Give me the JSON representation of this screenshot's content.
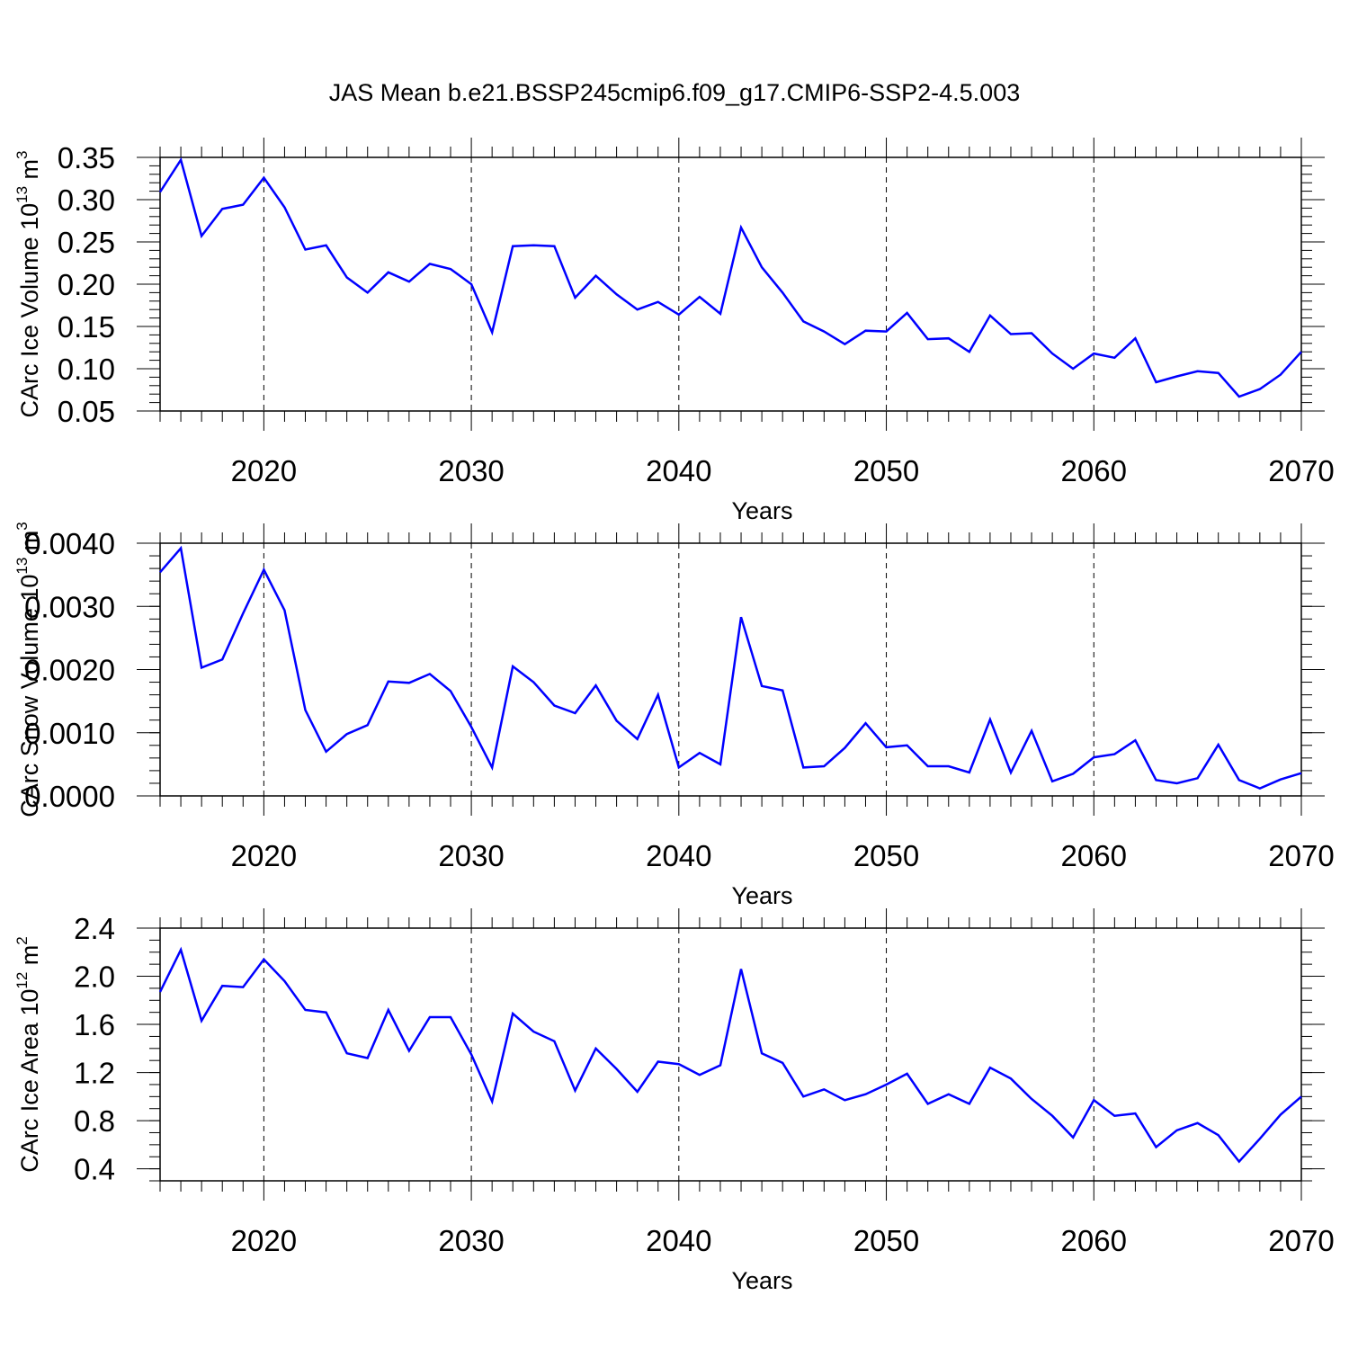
{
  "title": "JAS Mean b.e21.BSSP245cmip6.f09_g17.CMIP6-SSP2-4.5.003",
  "chart_data": [
    {
      "type": "line",
      "xlabel": "Years",
      "ylabel_main": "CArc Ice Volume 10",
      "ylabel_exp": "13",
      "ylabel_unit": " m",
      "ylabel_unit_exp": "3",
      "color": "#0000ff",
      "xlim": [
        2015,
        2070
      ],
      "ylim": [
        0.05,
        0.35
      ],
      "x_ticks": [
        2020,
        2030,
        2040,
        2050,
        2060,
        2070
      ],
      "x_tick_labels": [
        "2020",
        "2030",
        "2040",
        "2050",
        "2060",
        "2070"
      ],
      "y_ticks": [
        0.05,
        0.1,
        0.15,
        0.2,
        0.25,
        0.3,
        0.35
      ],
      "y_tick_labels": [
        "0.05",
        "0.10",
        "0.15",
        "0.20",
        "0.25",
        "0.30",
        "0.35"
      ],
      "y_minor_step": 0.01,
      "x": [
        2015,
        2016,
        2017,
        2018,
        2019,
        2020,
        2021,
        2022,
        2023,
        2024,
        2025,
        2026,
        2027,
        2028,
        2029,
        2030,
        2031,
        2032,
        2033,
        2034,
        2035,
        2036,
        2037,
        2038,
        2039,
        2040,
        2041,
        2042,
        2043,
        2044,
        2045,
        2046,
        2047,
        2048,
        2049,
        2050,
        2051,
        2052,
        2053,
        2054,
        2055,
        2056,
        2057,
        2058,
        2059,
        2060,
        2061,
        2062,
        2063,
        2064,
        2065,
        2066,
        2067,
        2068,
        2069,
        2070
      ],
      "values": [
        0.309,
        0.347,
        0.257,
        0.289,
        0.294,
        0.326,
        0.291,
        0.241,
        0.246,
        0.208,
        0.19,
        0.214,
        0.203,
        0.224,
        0.218,
        0.2,
        0.143,
        0.245,
        0.246,
        0.245,
        0.184,
        0.21,
        0.188,
        0.17,
        0.179,
        0.164,
        0.185,
        0.165,
        0.267,
        0.22,
        0.19,
        0.156,
        0.144,
        0.129,
        0.145,
        0.144,
        0.166,
        0.135,
        0.136,
        0.12,
        0.163,
        0.141,
        0.142,
        0.118,
        0.1,
        0.118,
        0.113,
        0.136,
        0.084,
        0.091,
        0.097,
        0.095,
        0.067,
        0.076,
        0.093,
        0.12
      ]
    },
    {
      "type": "line",
      "xlabel": "Years",
      "ylabel_main": "CArc Snow Volume 10",
      "ylabel_exp": "13",
      "ylabel_unit": " m",
      "ylabel_unit_exp": "3",
      "color": "#0000ff",
      "xlim": [
        2015,
        2070
      ],
      "ylim": [
        0.0,
        0.004
      ],
      "x_ticks": [
        2020,
        2030,
        2040,
        2050,
        2060,
        2070
      ],
      "x_tick_labels": [
        "2020",
        "2030",
        "2040",
        "2050",
        "2060",
        "2070"
      ],
      "y_ticks": [
        0.0,
        0.001,
        0.002,
        0.003,
        0.004
      ],
      "y_tick_labels": [
        "0.0000",
        "0.0010",
        "0.0020",
        "0.0030",
        "0.0040"
      ],
      "y_minor_step": 0.0002,
      "x": [
        2015,
        2016,
        2017,
        2018,
        2019,
        2020,
        2021,
        2022,
        2023,
        2024,
        2025,
        2026,
        2027,
        2028,
        2029,
        2030,
        2031,
        2032,
        2033,
        2034,
        2035,
        2036,
        2037,
        2038,
        2039,
        2040,
        2041,
        2042,
        2043,
        2044,
        2045,
        2046,
        2047,
        2048,
        2049,
        2050,
        2051,
        2052,
        2053,
        2054,
        2055,
        2056,
        2057,
        2058,
        2059,
        2060,
        2061,
        2062,
        2063,
        2064,
        2065,
        2066,
        2067,
        2068,
        2069,
        2070
      ],
      "values": [
        0.00354,
        0.00392,
        0.00203,
        0.00216,
        0.00289,
        0.00358,
        0.00294,
        0.00136,
        0.0007,
        0.00098,
        0.00112,
        0.00181,
        0.00179,
        0.00193,
        0.00166,
        0.00109,
        0.00045,
        0.00205,
        0.0018,
        0.00143,
        0.00131,
        0.00175,
        0.00119,
        0.0009,
        0.0016,
        0.00045,
        0.00068,
        0.0005,
        0.00283,
        0.00174,
        0.00167,
        0.00045,
        0.00047,
        0.00076,
        0.00115,
        0.00077,
        0.0008,
        0.00047,
        0.00047,
        0.00037,
        0.00121,
        0.00037,
        0.00103,
        0.00023,
        0.00035,
        0.00061,
        0.00066,
        0.00088,
        0.00025,
        0.0002,
        0.00028,
        0.00081,
        0.00025,
        0.00012,
        0.00026,
        0.00036
      ]
    },
    {
      "type": "line",
      "xlabel": "Years",
      "ylabel_main": "CArc Ice Area 10",
      "ylabel_exp": "12",
      "ylabel_unit": " m",
      "ylabel_unit_exp": "2",
      "color": "#0000ff",
      "xlim": [
        2015,
        2070
      ],
      "ylim": [
        0.3,
        2.4
      ],
      "x_ticks": [
        2020,
        2030,
        2040,
        2050,
        2060,
        2070
      ],
      "x_tick_labels": [
        "2020",
        "2030",
        "2040",
        "2050",
        "2060",
        "2070"
      ],
      "y_ticks": [
        0.4,
        0.8,
        1.2,
        1.6,
        2.0,
        2.4
      ],
      "y_tick_labels": [
        "0.4",
        "0.8",
        "1.2",
        "1.6",
        "2.0",
        "2.4"
      ],
      "y_minor_step": 0.1,
      "x": [
        2015,
        2016,
        2017,
        2018,
        2019,
        2020,
        2021,
        2022,
        2023,
        2024,
        2025,
        2026,
        2027,
        2028,
        2029,
        2030,
        2031,
        2032,
        2033,
        2034,
        2035,
        2036,
        2037,
        2038,
        2039,
        2040,
        2041,
        2042,
        2043,
        2044,
        2045,
        2046,
        2047,
        2048,
        2049,
        2050,
        2051,
        2052,
        2053,
        2054,
        2055,
        2056,
        2057,
        2058,
        2059,
        2060,
        2061,
        2062,
        2063,
        2064,
        2065,
        2066,
        2067,
        2068,
        2069,
        2070
      ],
      "values": [
        1.87,
        2.22,
        1.63,
        1.92,
        1.91,
        2.14,
        1.96,
        1.72,
        1.7,
        1.36,
        1.32,
        1.72,
        1.38,
        1.66,
        1.66,
        1.35,
        0.96,
        1.69,
        1.54,
        1.46,
        1.05,
        1.4,
        1.23,
        1.04,
        1.29,
        1.27,
        1.18,
        1.26,
        2.06,
        1.36,
        1.28,
        1.0,
        1.06,
        0.97,
        1.02,
        1.1,
        1.19,
        0.94,
        1.02,
        0.94,
        1.24,
        1.15,
        0.98,
        0.84,
        0.66,
        0.97,
        0.84,
        0.86,
        0.58,
        0.72,
        0.78,
        0.68,
        0.46,
        0.65,
        0.85,
        1.0
      ]
    }
  ]
}
